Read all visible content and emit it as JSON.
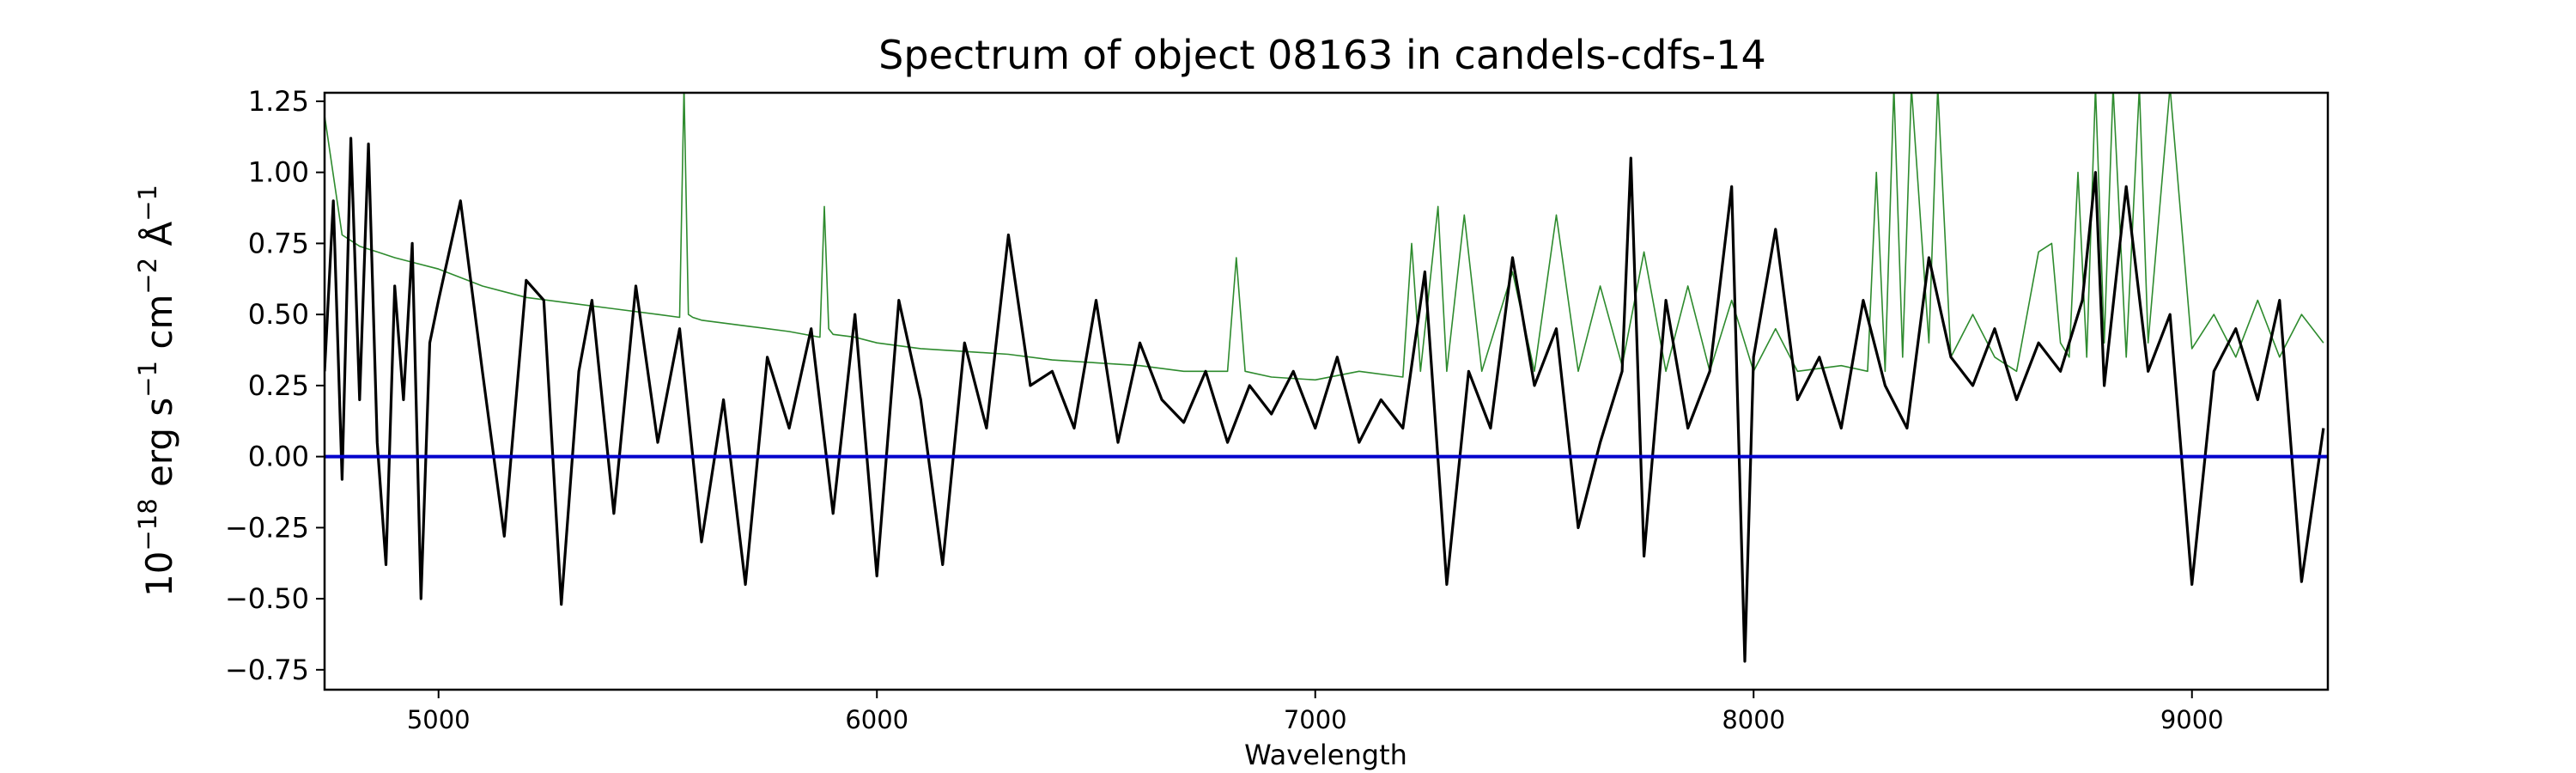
{
  "chart_data": {
    "type": "line",
    "title": "Spectrum of object 08163 in candels-cdfs-14",
    "xlabel": "Wavelength",
    "ylabel": {
      "base": "10",
      "exp": "−18",
      "erg": " erg s",
      "s_exp": "−1",
      "cm": " cm",
      "cm_exp": "−2",
      "ang": " Å",
      "ang_exp": "−1"
    },
    "xlim": [
      4740,
      9310
    ],
    "ylim": [
      -0.82,
      1.28
    ],
    "xticks": [
      5000,
      6000,
      7000,
      8000,
      9000
    ],
    "xtick_labels": [
      "5000",
      "6000",
      "7000",
      "8000",
      "9000"
    ],
    "yticks": [
      -0.75,
      -0.5,
      -0.25,
      0.0,
      0.25,
      0.5,
      0.75,
      1.0,
      1.25
    ],
    "ytick_labels": [
      "−0.75",
      "−0.50",
      "−0.25",
      "0.00",
      "0.25",
      "0.50",
      "0.75",
      "1.00",
      "1.25"
    ],
    "grid": false,
    "legend": "none",
    "colors": {
      "flux": "#000000",
      "noise": "#2e8b2e",
      "zero": "#0000cc"
    },
    "series": [
      {
        "id": "flux",
        "x": [
          4740,
          4760,
          4780,
          4800,
          4820,
          4840,
          4860,
          4880,
          4900,
          4920,
          4940,
          4960,
          4980,
          5000,
          5050,
          5100,
          5150,
          5200,
          5240,
          5280,
          5320,
          5350,
          5400,
          5450,
          5500,
          5550,
          5600,
          5650,
          5700,
          5750,
          5800,
          5850,
          5900,
          5950,
          6000,
          6050,
          6100,
          6150,
          6200,
          6250,
          6300,
          6350,
          6400,
          6450,
          6500,
          6550,
          6600,
          6650,
          6700,
          6750,
          6800,
          6850,
          6900,
          6950,
          7000,
          7050,
          7100,
          7150,
          7200,
          7250,
          7300,
          7350,
          7400,
          7450,
          7500,
          7550,
          7600,
          7650,
          7700,
          7720,
          7750,
          7800,
          7850,
          7900,
          7950,
          7980,
          8000,
          8050,
          8100,
          8150,
          8200,
          8250,
          8300,
          8350,
          8400,
          8450,
          8500,
          8550,
          8600,
          8650,
          8700,
          8750,
          8780,
          8800,
          8850,
          8900,
          8950,
          9000,
          9050,
          9100,
          9150,
          9200,
          9250,
          9300
        ],
        "y": [
          0.3,
          0.9,
          -0.08,
          1.12,
          0.2,
          1.1,
          0.05,
          -0.38,
          0.6,
          0.2,
          0.75,
          -0.5,
          0.4,
          0.55,
          0.9,
          0.3,
          -0.28,
          0.62,
          0.55,
          -0.52,
          0.3,
          0.55,
          -0.2,
          0.6,
          0.05,
          0.45,
          -0.3,
          0.2,
          -0.45,
          0.35,
          0.1,
          0.45,
          -0.2,
          0.5,
          -0.42,
          0.55,
          0.2,
          -0.38,
          0.4,
          0.1,
          0.78,
          0.25,
          0.3,
          0.1,
          0.55,
          0.05,
          0.4,
          0.2,
          0.12,
          0.3,
          0.05,
          0.25,
          0.15,
          0.3,
          0.1,
          0.35,
          0.05,
          0.2,
          0.1,
          0.65,
          -0.45,
          0.3,
          0.1,
          0.7,
          0.25,
          0.45,
          -0.25,
          0.05,
          0.3,
          1.05,
          -0.35,
          0.55,
          0.1,
          0.3,
          0.95,
          -0.72,
          0.35,
          0.8,
          0.2,
          0.35,
          0.1,
          0.55,
          0.25,
          0.1,
          0.7,
          0.35,
          0.25,
          0.45,
          0.2,
          0.4,
          0.3,
          0.55,
          1.0,
          0.25,
          0.95,
          0.3,
          0.5,
          -0.45,
          0.3,
          0.45,
          0.2,
          0.55,
          -0.44,
          0.1
        ]
      },
      {
        "id": "noise",
        "x": [
          4740,
          4780,
          4820,
          4860,
          4900,
          4950,
          5000,
          5050,
          5100,
          5150,
          5200,
          5300,
          5400,
          5500,
          5550,
          5560,
          5570,
          5580,
          5600,
          5700,
          5800,
          5870,
          5880,
          5890,
          5900,
          5950,
          6000,
          6100,
          6200,
          6300,
          6400,
          6500,
          6600,
          6700,
          6800,
          6820,
          6840,
          6900,
          7000,
          7100,
          7200,
          7220,
          7240,
          7280,
          7300,
          7340,
          7380,
          7450,
          7500,
          7550,
          7600,
          7650,
          7700,
          7750,
          7800,
          7850,
          7900,
          7950,
          8000,
          8050,
          8100,
          8200,
          8260,
          8280,
          8300,
          8320,
          8340,
          8360,
          8400,
          8420,
          8450,
          8500,
          8550,
          8600,
          8650,
          8680,
          8700,
          8720,
          8740,
          8760,
          8780,
          8800,
          8820,
          8850,
          8880,
          8900,
          8950,
          9000,
          9050,
          9100,
          9150,
          9200,
          9250,
          9300
        ],
        "y": [
          1.2,
          0.78,
          0.74,
          0.72,
          0.7,
          0.68,
          0.66,
          0.63,
          0.6,
          0.58,
          0.56,
          0.54,
          0.52,
          0.5,
          0.49,
          1.3,
          0.5,
          0.49,
          0.48,
          0.46,
          0.44,
          0.42,
          0.88,
          0.45,
          0.43,
          0.42,
          0.4,
          0.38,
          0.37,
          0.36,
          0.34,
          0.33,
          0.32,
          0.3,
          0.3,
          0.7,
          0.3,
          0.28,
          0.27,
          0.3,
          0.28,
          0.75,
          0.3,
          0.88,
          0.3,
          0.85,
          0.3,
          0.65,
          0.3,
          0.85,
          0.3,
          0.6,
          0.32,
          0.72,
          0.3,
          0.6,
          0.3,
          0.55,
          0.3,
          0.45,
          0.3,
          0.32,
          0.3,
          1.0,
          0.3,
          1.3,
          0.35,
          1.3,
          0.4,
          1.3,
          0.35,
          0.5,
          0.35,
          0.3,
          0.72,
          0.75,
          0.4,
          0.35,
          1.0,
          0.35,
          1.3,
          0.4,
          1.3,
          0.35,
          1.3,
          0.4,
          1.3,
          0.38,
          0.5,
          0.35,
          0.55,
          0.35,
          0.5,
          0.4
        ]
      }
    ]
  }
}
